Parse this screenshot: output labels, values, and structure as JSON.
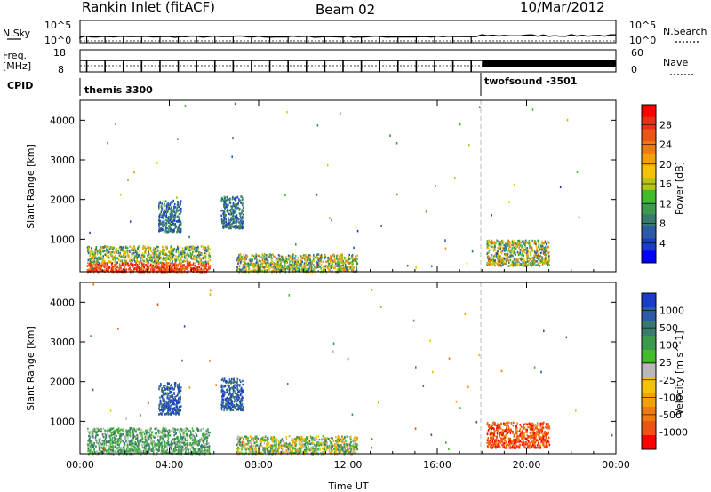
{
  "header": {
    "station": "Rankin Inlet (fitACF)",
    "beam": "Beam 02",
    "date": "10/Mar/2012"
  },
  "top_panels": {
    "nsky_label": "N.Sky",
    "nsky_ticks": [
      "10^5",
      "10^0"
    ],
    "nsearch_label": "N.Search",
    "nsearch_ticks": [
      "10^5",
      "10^0"
    ],
    "freq_label_1": "Freq.",
    "freq_label_2": "[MHz]",
    "freq_ticks": [
      "18",
      "8"
    ],
    "nave_label": "Nave",
    "nave_ticks": [
      "60",
      "0"
    ],
    "cpid_label": "CPID",
    "cpid_modes": [
      {
        "name": "themis 3300",
        "start_hour": 0
      },
      {
        "name": "twofsound -3501",
        "start_hour": 18
      }
    ]
  },
  "chart_data": [
    {
      "type": "heatmap",
      "name": "power-panel",
      "ylabel": "Slant Range [km]",
      "xlabel": "",
      "x_ticks": [
        "00:00",
        "04:00",
        "08:00",
        "12:00",
        "16:00",
        "20:00",
        "00:00"
      ],
      "xlim_hours": [
        0,
        24
      ],
      "ylim_km": [
        180,
        4500
      ],
      "y_ticks": [
        1000,
        2000,
        3000,
        4000
      ],
      "colorbar": {
        "label": "Power [dB]",
        "ticks": [
          "4",
          "8",
          "12",
          "16",
          "20",
          "24",
          "28"
        ],
        "colors": [
          "#0000ff",
          "#1a3cc8",
          "#2e5aa6",
          "#3a7a6e",
          "#3c9a4c",
          "#44bb2c",
          "#b6c418",
          "#f2c10a",
          "#f2a00c",
          "#ee7a10",
          "#ea5414",
          "#e63018",
          "#ff0000"
        ]
      },
      "echo_regions": [
        {
          "hour_start": 0.3,
          "hour_end": 5.8,
          "range_start": 200,
          "range_end": 850,
          "intensity": "high"
        },
        {
          "hour_start": 7.0,
          "hour_end": 12.4,
          "range_start": 200,
          "range_end": 650,
          "intensity": "medium"
        },
        {
          "hour_start": 3.5,
          "hour_end": 4.5,
          "range_start": 1200,
          "range_end": 2000,
          "intensity": "low"
        },
        {
          "hour_start": 6.3,
          "hour_end": 7.3,
          "range_start": 1300,
          "range_end": 2100,
          "intensity": "low"
        },
        {
          "hour_start": 18.2,
          "hour_end": 21.0,
          "range_start": 350,
          "range_end": 1000,
          "intensity": "medium"
        }
      ]
    },
    {
      "type": "heatmap",
      "name": "velocity-panel",
      "ylabel": "Slant Range [km]",
      "xlabel": "Time UT",
      "x_ticks": [
        "00:00",
        "04:00",
        "08:00",
        "12:00",
        "16:00",
        "20:00",
        "00:00"
      ],
      "xlim_hours": [
        0,
        24
      ],
      "ylim_km": [
        180,
        4500
      ],
      "y_ticks": [
        1000,
        2000,
        3000,
        4000
      ],
      "colorbar": {
        "label": "Velocity [m s^-1]",
        "ticks": [
          "1000",
          "500",
          "100",
          "25",
          "-25",
          "-100",
          "-500",
          "-1000"
        ],
        "colors": [
          "#1a3cc8",
          "#2e5aa6",
          "#3a7a6e",
          "#3c9a4c",
          "#44bb2c",
          "#b8b8b8",
          "#f2c10a",
          "#f2a00c",
          "#ee7a10",
          "#ea5414",
          "#ff0000"
        ]
      },
      "echo_regions": [
        {
          "hour_start": 0.3,
          "hour_end": 5.8,
          "range_start": 200,
          "range_end": 850,
          "velocity": "slow"
        },
        {
          "hour_start": 7.0,
          "hour_end": 12.4,
          "range_start": 200,
          "range_end": 650,
          "velocity": "mixed"
        },
        {
          "hour_start": 3.5,
          "hour_end": 4.5,
          "range_start": 1200,
          "range_end": 2000,
          "velocity": "toward"
        },
        {
          "hour_start": 6.3,
          "hour_end": 7.3,
          "range_start": 1300,
          "range_end": 2100,
          "velocity": "toward"
        },
        {
          "hour_start": 18.2,
          "hour_end": 21.0,
          "range_start": 350,
          "range_end": 1000,
          "velocity": "away"
        }
      ]
    }
  ]
}
